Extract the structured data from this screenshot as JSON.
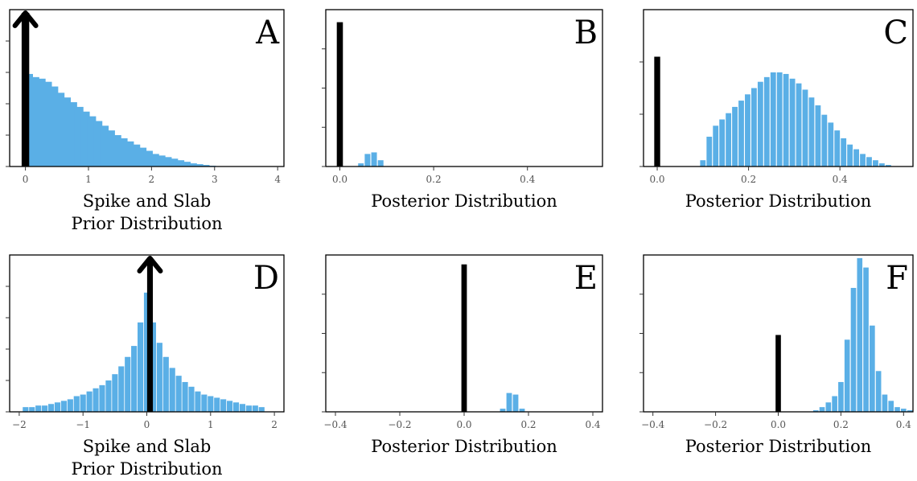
{
  "colors": {
    "slab": "#5aafe6",
    "spike": "#000000"
  },
  "chart_data": [
    {
      "type": "bar",
      "panel": "A",
      "xlabel": [
        "Spike and Slab",
        "Prior Distribution"
      ],
      "xlim": [
        -0.25,
        4.1
      ],
      "ylim": [
        0,
        1.0
      ],
      "xticks": [
        0,
        1,
        2,
        3,
        4
      ],
      "xtick_labels": [
        "0",
        "1",
        "2",
        "3",
        "4"
      ],
      "y_tick_count": 5,
      "bin_width": 0.14,
      "bars": {
        "x": [
          0.05,
          0.15,
          0.25,
          0.35,
          0.45,
          0.55,
          0.65,
          0.75,
          0.85,
          0.95,
          1.05,
          1.15,
          1.25,
          1.35,
          1.45,
          1.55,
          1.65,
          1.75,
          1.85,
          1.95,
          2.05,
          2.15,
          2.25,
          2.35,
          2.45,
          2.55,
          2.65,
          2.75,
          2.85,
          2.95
        ],
        "values": [
          0.59,
          0.57,
          0.56,
          0.54,
          0.51,
          0.47,
          0.44,
          0.41,
          0.38,
          0.35,
          0.32,
          0.29,
          0.26,
          0.23,
          0.2,
          0.18,
          0.16,
          0.14,
          0.12,
          0.1,
          0.08,
          0.07,
          0.06,
          0.05,
          0.04,
          0.03,
          0.02,
          0.015,
          0.01,
          0.005
        ]
      },
      "spike": {
        "x": 0.0,
        "value": 0.99,
        "width": 0.12,
        "arrow": true
      }
    },
    {
      "type": "bar",
      "panel": "B",
      "xlabel": [
        "Posterior Distribution"
      ],
      "xlim": [
        -0.03,
        0.56
      ],
      "ylim": [
        0,
        1.0
      ],
      "xticks": [
        0.0,
        0.2,
        0.4
      ],
      "xtick_labels": [
        "0.0",
        "0.2",
        "0.4"
      ],
      "y_tick_count": 4,
      "bin_width": 0.012,
      "bars": {
        "x": [
          0.045,
          0.059,
          0.073,
          0.087
        ],
        "values": [
          0.02,
          0.08,
          0.09,
          0.04
        ]
      },
      "spike": {
        "x": 0.0,
        "value": 0.92,
        "width": 0.013
      }
    },
    {
      "type": "bar",
      "panel": "C",
      "xlabel": [
        "Posterior Distribution"
      ],
      "xlim": [
        -0.03,
        0.56
      ],
      "ylim": [
        0,
        1.0
      ],
      "xticks": [
        0.0,
        0.2,
        0.4
      ],
      "xtick_labels": [
        "0.0",
        "0.2",
        "0.4"
      ],
      "y_tick_count": 3,
      "bin_width": 0.012,
      "bars": {
        "x": [
          0.1,
          0.114,
          0.128,
          0.142,
          0.156,
          0.17,
          0.184,
          0.198,
          0.212,
          0.226,
          0.24,
          0.254,
          0.268,
          0.282,
          0.296,
          0.31,
          0.324,
          0.338,
          0.352,
          0.366,
          0.38,
          0.394,
          0.408,
          0.422,
          0.436,
          0.45,
          0.464,
          0.478,
          0.492,
          0.506
        ],
        "values": [
          0.04,
          0.19,
          0.26,
          0.3,
          0.34,
          0.38,
          0.42,
          0.46,
          0.5,
          0.54,
          0.57,
          0.6,
          0.6,
          0.59,
          0.56,
          0.53,
          0.49,
          0.44,
          0.39,
          0.33,
          0.28,
          0.23,
          0.18,
          0.14,
          0.11,
          0.08,
          0.06,
          0.04,
          0.02,
          0.01
        ]
      },
      "spike": {
        "x": 0.0,
        "value": 0.7,
        "width": 0.013
      }
    },
    {
      "type": "bar",
      "panel": "D",
      "xlabel": [
        "Spike and Slab",
        "Prior Distribution"
      ],
      "xlim": [
        -2.15,
        2.15
      ],
      "ylim": [
        0,
        1.0
      ],
      "xticks": [
        -2,
        -1,
        0,
        1,
        2
      ],
      "xtick_labels": [
        "−2",
        "−1",
        "0",
        "1",
        "2"
      ],
      "y_tick_count": 5,
      "bin_width": 0.09,
      "bars": {
        "x": [
          -1.9,
          -1.8,
          -1.7,
          -1.6,
          -1.5,
          -1.4,
          -1.3,
          -1.2,
          -1.1,
          -1.0,
          -0.9,
          -0.8,
          -0.7,
          -0.6,
          -0.5,
          -0.4,
          -0.3,
          -0.2,
          -0.1,
          0.0,
          0.1,
          0.2,
          0.3,
          0.4,
          0.5,
          0.6,
          0.7,
          0.8,
          0.9,
          1.0,
          1.1,
          1.2,
          1.3,
          1.4,
          1.5,
          1.6,
          1.7,
          1.8
        ],
        "values": [
          0.03,
          0.03,
          0.04,
          0.04,
          0.05,
          0.06,
          0.07,
          0.08,
          0.1,
          0.11,
          0.13,
          0.15,
          0.17,
          0.2,
          0.24,
          0.29,
          0.35,
          0.42,
          0.57,
          0.76,
          0.57,
          0.44,
          0.35,
          0.28,
          0.23,
          0.19,
          0.16,
          0.13,
          0.11,
          0.1,
          0.09,
          0.08,
          0.07,
          0.06,
          0.05,
          0.04,
          0.04,
          0.03
        ]
      },
      "spike": {
        "x": 0.05,
        "value": 0.99,
        "width": 0.09,
        "arrow": true
      }
    },
    {
      "type": "bar",
      "panel": "E",
      "xlabel": [
        "Posterior Distribution"
      ],
      "xlim": [
        -0.43,
        0.43
      ],
      "ylim": [
        0,
        1.0
      ],
      "xticks": [
        -0.4,
        -0.2,
        0.0,
        0.2,
        0.4
      ],
      "xtick_labels": [
        "−0.4",
        "−0.2",
        "0.0",
        "0.2",
        "0.4"
      ],
      "y_tick_count": 4,
      "bin_width": 0.017,
      "bars": {
        "x": [
          0.12,
          0.14,
          0.16,
          0.18
        ],
        "values": [
          0.02,
          0.12,
          0.11,
          0.02
        ]
      },
      "spike": {
        "x": 0.0,
        "value": 0.94,
        "width": 0.017
      }
    },
    {
      "type": "bar",
      "panel": "F",
      "xlabel": [
        "Posterior Distribution"
      ],
      "xlim": [
        -0.43,
        0.43
      ],
      "ylim": [
        0,
        1.0
      ],
      "xticks": [
        -0.4,
        -0.2,
        0.0,
        0.2,
        0.4
      ],
      "xtick_labels": [
        "−0.4",
        "−0.2",
        "0.0",
        "0.2",
        "0.4"
      ],
      "y_tick_count": 4,
      "bin_width": 0.017,
      "bars": {
        "x": [
          0.12,
          0.14,
          0.16,
          0.18,
          0.2,
          0.22,
          0.24,
          0.26,
          0.28,
          0.3,
          0.32,
          0.34,
          0.36,
          0.38,
          0.4,
          0.42
        ],
        "values": [
          0.01,
          0.03,
          0.06,
          0.1,
          0.19,
          0.46,
          0.79,
          0.98,
          0.92,
          0.55,
          0.26,
          0.11,
          0.07,
          0.03,
          0.02,
          0.01
        ]
      },
      "spike": {
        "x": 0.0,
        "value": 0.49,
        "width": 0.017
      }
    }
  ]
}
